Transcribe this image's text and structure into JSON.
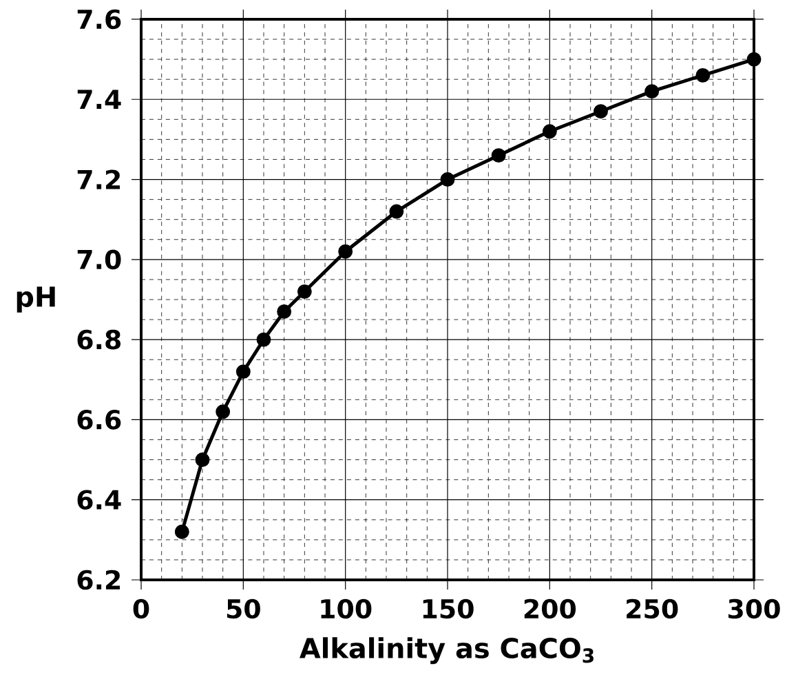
{
  "chart_data": {
    "type": "line",
    "xlabel": "Alkalinity as CaCO$_{3}$",
    "ylabel": "pH",
    "x": [
      20,
      30,
      40,
      50,
      60,
      70,
      80,
      100,
      125,
      150,
      175,
      200,
      225,
      250,
      275,
      300
    ],
    "series": [
      {
        "color": "#000000",
        "values": [
          6.32,
          6.5,
          6.62,
          6.72,
          6.8,
          6.87,
          6.92,
          7.02,
          7.12,
          7.2,
          7.26,
          7.32,
          7.37,
          7.42,
          7.46,
          7.5
        ]
      }
    ],
    "xlim": [
      0,
      300
    ],
    "ylim": [
      6.2,
      7.6
    ],
    "xticks": [
      0,
      50,
      100,
      150,
      200,
      250,
      300
    ],
    "yticks": [
      {
        "value": 6.2,
        "label": "6.2"
      },
      {
        "value": 6.4,
        "label": "6.4"
      },
      {
        "value": 6.6,
        "label": "6.6"
      },
      {
        "value": 6.8,
        "label": "6.8"
      },
      {
        "value": 7.0,
        "label": "7.0"
      },
      {
        "value": 7.2,
        "label": "7.2"
      },
      {
        "value": 7.4,
        "label": "7.4"
      },
      {
        "value": 7.6,
        "label": "7.6"
      }
    ],
    "grid": true,
    "marker": "circle",
    "line_style": "solid"
  }
}
